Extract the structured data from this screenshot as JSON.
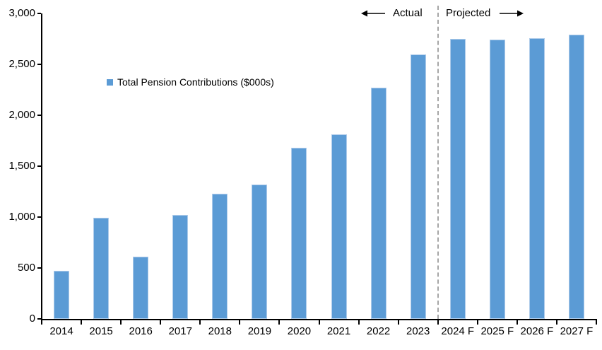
{
  "chart_data": {
    "type": "bar",
    "title": "",
    "xlabel": "",
    "ylabel": "",
    "categories": [
      "2014",
      "2015",
      "2016",
      "2017",
      "2018",
      "2019",
      "2020",
      "2021",
      "2022",
      "2023",
      "2024 F",
      "2025 F",
      "2026 F",
      "2027 F"
    ],
    "series": [
      {
        "name": "Total Pension Contributions ($000s)",
        "values": [
          470,
          990,
          610,
          1020,
          1230,
          1320,
          1680,
          1810,
          2270,
          2600,
          2750,
          2740,
          2760,
          2790
        ]
      }
    ],
    "ylim": [
      0,
      3000
    ],
    "ytick_step": 500,
    "ytick_labels": [
      "0",
      "500",
      "1,000",
      "1,500",
      "2,000",
      "2,500",
      "3,000"
    ],
    "grid": false,
    "legend_position": "inside-upper-left",
    "annotations": {
      "actual_label": "Actual",
      "projected_label": "Projected",
      "divider_after_category": "2023"
    }
  },
  "legend": {
    "label": "Total Pension Contributions ($000s)",
    "swatch_color": "#5B9BD5"
  },
  "colors": {
    "bar_fill": "#5B9BD5",
    "bar_border": "#AECBEA",
    "axis": "#000000",
    "divider": "#A6A6A6",
    "text": "#000000",
    "background": "#FFFFFF"
  }
}
